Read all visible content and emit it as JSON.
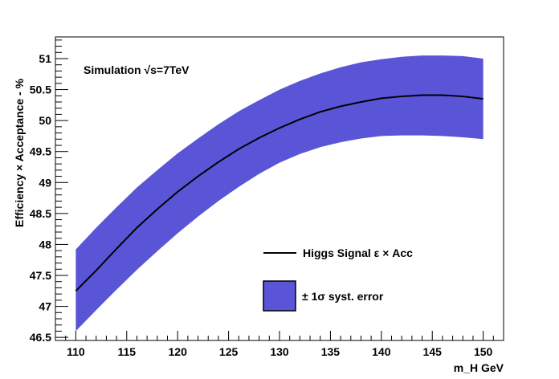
{
  "chart_data": {
    "type": "area",
    "annotation": "Simulation  √s=7TeV",
    "xlabel": "m_H GeV",
    "ylabel": "Efficiency  × Acceptance - %",
    "xlim": [
      108,
      152
    ],
    "ylim": [
      46.45,
      51.35
    ],
    "xticks": [
      110,
      115,
      120,
      125,
      130,
      135,
      140,
      145,
      150
    ],
    "yticks": [
      46.5,
      47,
      47.5,
      48,
      48.5,
      49,
      49.5,
      50,
      50.5,
      51
    ],
    "x": [
      110,
      112,
      114,
      116,
      118,
      120,
      122,
      124,
      126,
      128,
      130,
      132,
      134,
      136,
      138,
      140,
      142,
      144,
      146,
      148,
      150
    ],
    "series": [
      {
        "name": "Higgs Signal ε × Acc",
        "kind": "line",
        "color": "#000000",
        "values": [
          47.25,
          47.58,
          47.93,
          48.27,
          48.57,
          48.85,
          49.1,
          49.33,
          49.54,
          49.72,
          49.88,
          50.02,
          50.14,
          50.23,
          50.3,
          50.36,
          50.39,
          50.41,
          50.41,
          50.39,
          50.35
        ]
      },
      {
        "name": "± 1σ syst. error",
        "kind": "band",
        "color": "#5a55d6",
        "upper": [
          47.92,
          48.27,
          48.6,
          48.92,
          49.2,
          49.47,
          49.71,
          49.94,
          50.15,
          50.33,
          50.5,
          50.64,
          50.76,
          50.86,
          50.94,
          50.99,
          51.03,
          51.05,
          51.05,
          51.04,
          51.0
        ],
        "lower": [
          46.6,
          46.94,
          47.27,
          47.59,
          47.89,
          48.18,
          48.45,
          48.7,
          48.93,
          49.14,
          49.32,
          49.46,
          49.57,
          49.65,
          49.71,
          49.75,
          49.76,
          49.76,
          49.75,
          49.73,
          49.7
        ]
      }
    ],
    "legend_position": "bottom-right",
    "grid": false
  }
}
